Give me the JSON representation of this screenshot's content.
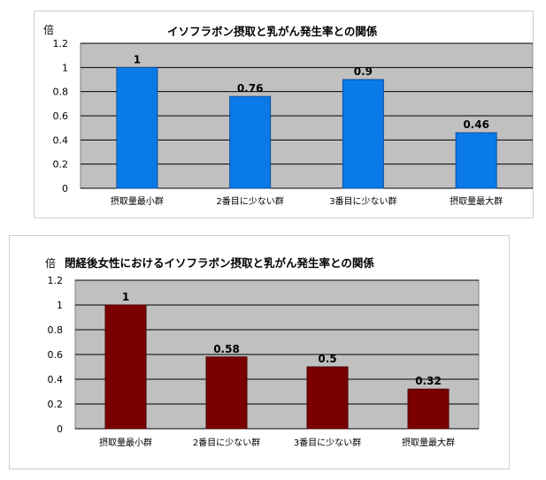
{
  "chart_data": [
    {
      "type": "bar",
      "title": "イソフラボン摂取と乳がん発生率との関係",
      "ylabel": "倍",
      "categories": [
        "摂取量最小群",
        "2番目に少ない群",
        "3番目に少ない群",
        "摂取量最大群"
      ],
      "values": [
        1,
        0.76,
        0.9,
        0.46
      ],
      "data_labels": [
        "1",
        "0.76",
        "0.9",
        "0.46"
      ],
      "ylim": [
        0,
        1.2
      ],
      "yticks": [
        "0",
        "0.2",
        "0.4",
        "0.6",
        "0.8",
        "1",
        "1.2"
      ],
      "grid": true,
      "colors": {
        "bar": "#0a7ae6",
        "bar_edge": "#0a4fa0",
        "plot_bg": "#c0c0c0"
      }
    },
    {
      "type": "bar",
      "title": "閉経後女性におけるイソフラボン摂取と乳がん発生率との関係",
      "ylabel": "倍",
      "categories": [
        "摂取量最小群",
        "2番目に少ない群",
        "3番目に少ない群",
        "摂取量最大群"
      ],
      "values": [
        1,
        0.58,
        0.5,
        0.32
      ],
      "data_labels": [
        "1",
        "0.58",
        "0.5",
        "0.32"
      ],
      "ylim": [
        0,
        1.2
      ],
      "yticks": [
        "0",
        "0.2",
        "0.4",
        "0.6",
        "0.8",
        "1",
        "1.2"
      ],
      "grid": true,
      "colors": {
        "bar": "#7a0000",
        "bar_edge": "#4a0000",
        "plot_bg": "#c0c0c0"
      }
    }
  ]
}
